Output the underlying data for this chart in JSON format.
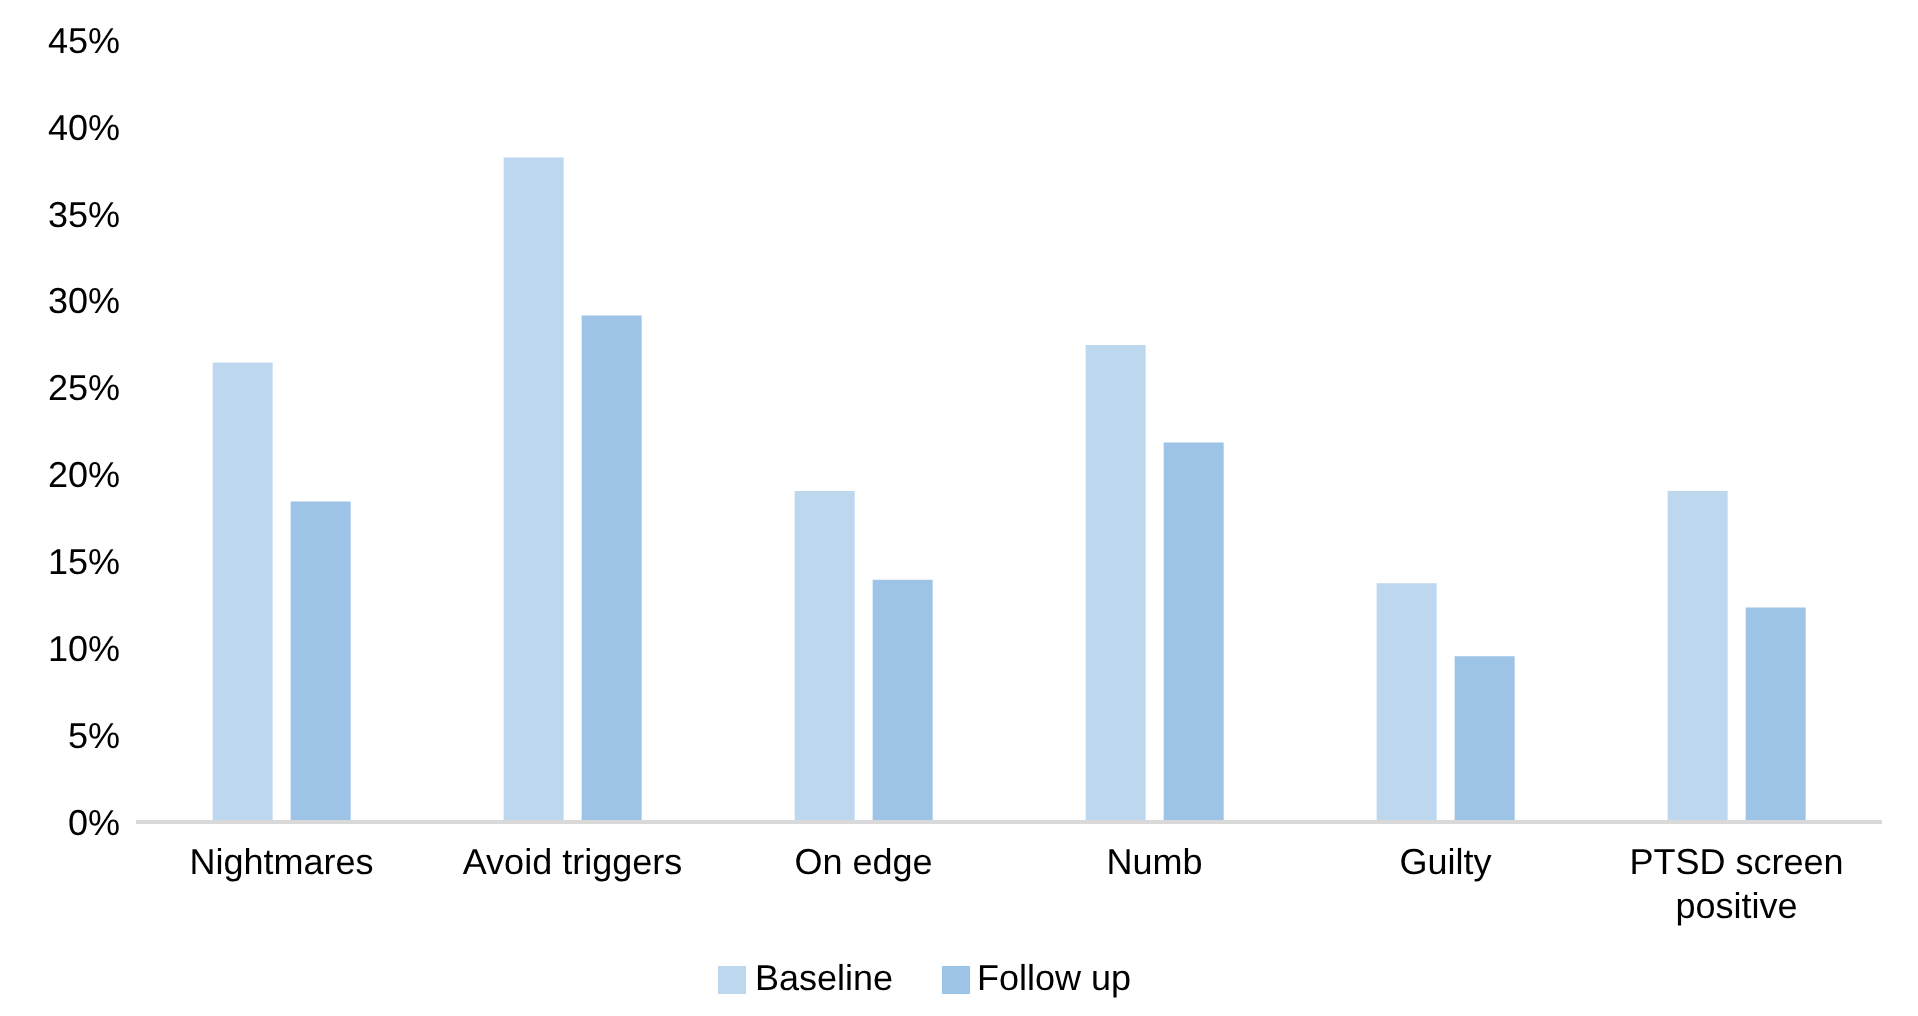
{
  "chart_data": {
    "type": "bar",
    "categories": [
      "Nightmares",
      "Avoid triggers",
      "On edge",
      "Numb",
      "Guilty",
      "PTSD screen positive"
    ],
    "series": [
      {
        "name": "Baseline",
        "color": "#bdd7ee",
        "values": [
          26.5,
          38.3,
          19.1,
          27.5,
          13.8,
          19.1
        ]
      },
      {
        "name": "Follow up",
        "color": "#9dc3e6",
        "values": [
          18.5,
          29.2,
          14.0,
          21.9,
          9.6,
          12.4
        ]
      }
    ],
    "ylim": [
      0,
      45
    ],
    "yticks": [
      {
        "value": 0,
        "label": "0%"
      },
      {
        "value": 5,
        "label": "5%"
      },
      {
        "value": 10,
        "label": "10%"
      },
      {
        "value": 15,
        "label": "15%"
      },
      {
        "value": 20,
        "label": "20%"
      },
      {
        "value": 25,
        "label": "25%"
      },
      {
        "value": 30,
        "label": "30%"
      },
      {
        "value": 35,
        "label": "35%"
      },
      {
        "value": 40,
        "label": "40%"
      },
      {
        "value": 45,
        "label": "45%"
      }
    ],
    "grid": false,
    "legend": "bottom"
  }
}
